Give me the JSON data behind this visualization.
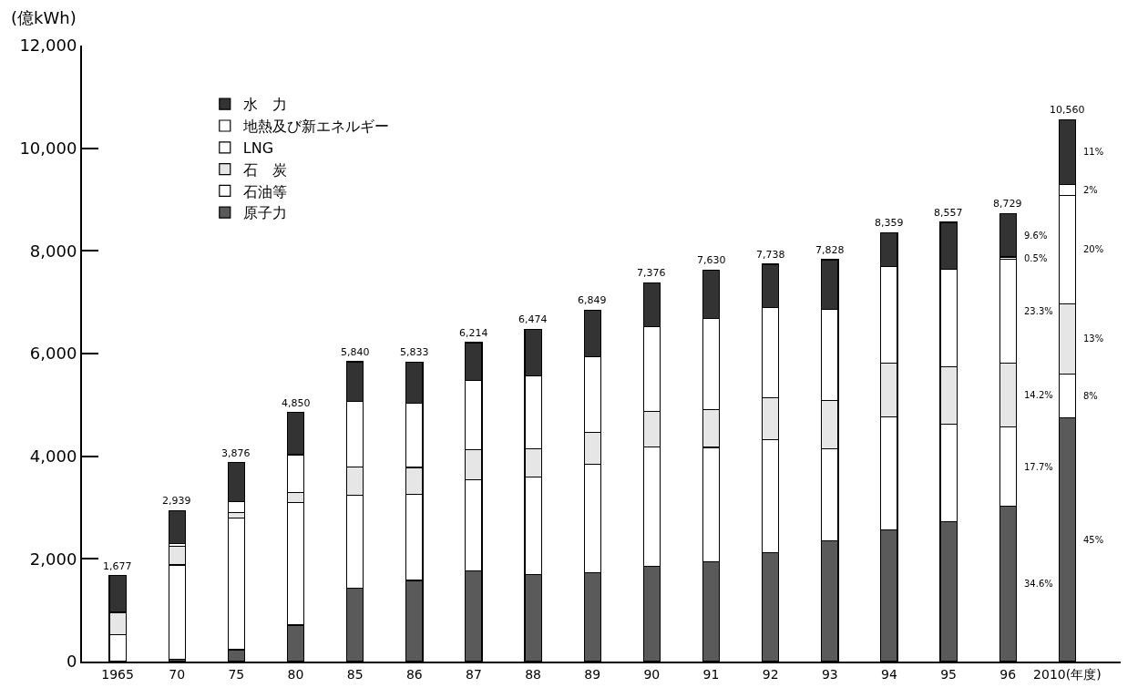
{
  "chart_data": {
    "type": "bar",
    "stacked": true,
    "ylabel": "(億kWh)",
    "categories": [
      "1965",
      "70",
      "75",
      "80",
      "85",
      "86",
      "87",
      "88",
      "89",
      "90",
      "91",
      "92",
      "93",
      "94",
      "95",
      "96",
      "2010(年度)"
    ],
    "series": [
      {
        "name": "原子力",
        "color": "#5a5a5a",
        "values": [
          0,
          50,
          230,
          710,
          1430,
          1580,
          1760,
          1700,
          1730,
          1860,
          1940,
          2120,
          2350,
          2570,
          2730,
          3020,
          4750
        ]
      },
      {
        "name": "石油等",
        "color": "#ffffff",
        "values": [
          520,
          1830,
          2570,
          2390,
          1810,
          1680,
          1780,
          1890,
          2110,
          2320,
          2230,
          2200,
          1800,
          2190,
          1900,
          1550,
          850
        ]
      },
      {
        "name": "石　炭",
        "color": "#e6e6e6",
        "values": [
          440,
          370,
          100,
          190,
          550,
          520,
          590,
          560,
          630,
          690,
          740,
          820,
          930,
          1060,
          1110,
          1240,
          1370
        ]
      },
      {
        "name": "LNG",
        "color": "#ffffff",
        "values": [
          0,
          50,
          210,
          740,
          1280,
          1250,
          1350,
          1420,
          1470,
          1660,
          1770,
          1760,
          1780,
          1870,
          1900,
          2030,
          2110
        ]
      },
      {
        "name": "地熱及び新エネルギー",
        "color": "#ffffff",
        "values": [
          0,
          0,
          0,
          0,
          0,
          0,
          0,
          0,
          0,
          0,
          0,
          0,
          0,
          0,
          0,
          40,
          210
        ]
      },
      {
        "name": "水　力",
        "color": "#333333",
        "values": [
          717,
          639,
          766,
          820,
          770,
          803,
          734,
          904,
          909,
          846,
          950,
          838,
          968,
          669,
          917,
          849,
          1270
        ]
      }
    ],
    "totals": [
      "1,677",
      "2,939",
      "3,876",
      "4,850",
      "5,840",
      "5,833",
      "6,214",
      "6,474",
      "6,849",
      "7,376",
      "7,630",
      "7,738",
      "7,828",
      "8,359",
      "8,557",
      "8,729",
      "10,560"
    ],
    "ylim": [
      0,
      12000
    ],
    "yticks": [
      0,
      {
        "value": 2000,
        "label": "2,000"
      },
      {
        "value": 4000,
        "label": "4,000"
      },
      {
        "value": 6000,
        "label": "6,000"
      },
      {
        "value": 8000,
        "label": "8,000"
      },
      {
        "value": 10000,
        "label": "10,000"
      },
      {
        "value": 12000,
        "label": "12,000"
      }
    ],
    "annotations": [
      "34.6%",
      "17.7%",
      "14.2%",
      "23.3%",
      "0.5%",
      "9.6%",
      "45%",
      "8%",
      "13%",
      "20%",
      "2%",
      "11%"
    ],
    "legend": "top left"
  }
}
